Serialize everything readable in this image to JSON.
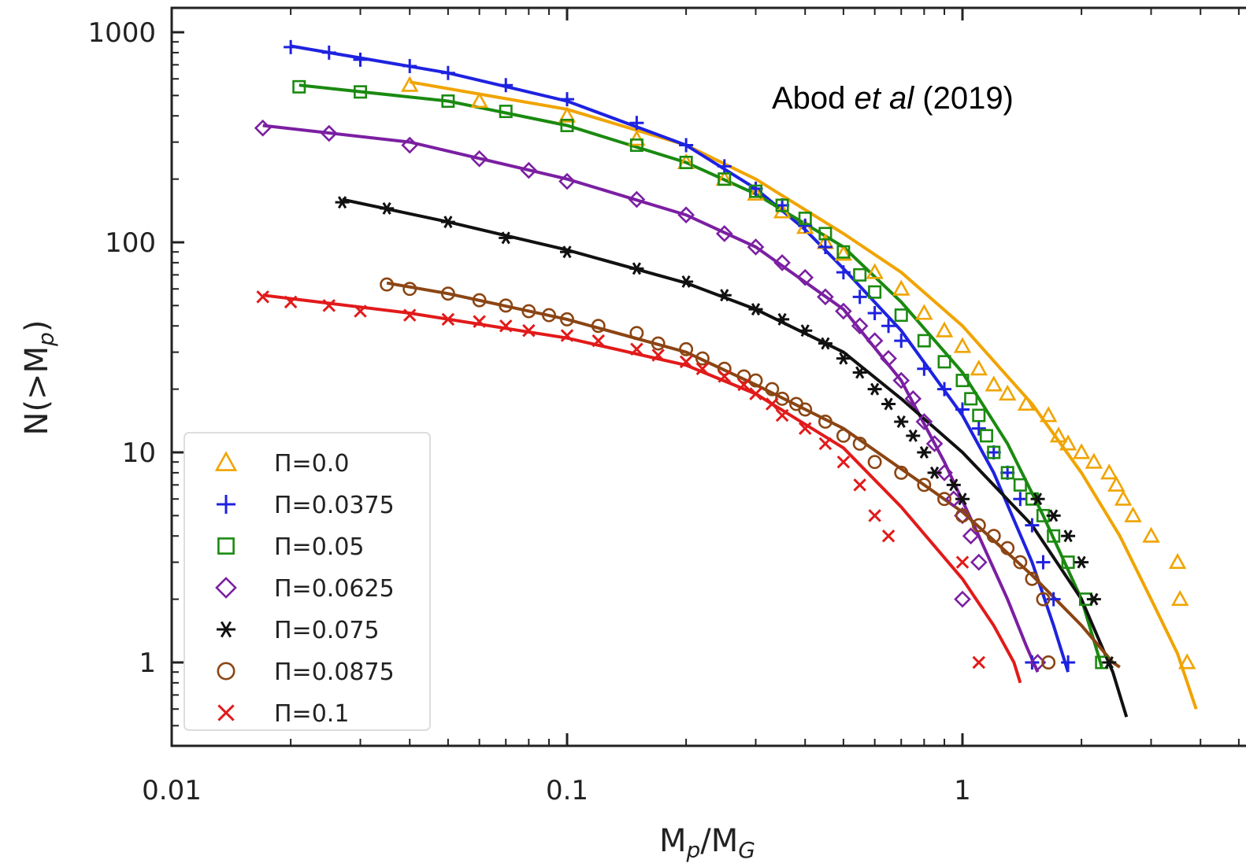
{
  "chart_data": {
    "type": "scatter",
    "title": "",
    "xlabel": "M",
    "xlabel_sub": "p",
    "xlabel_sep": "/M",
    "xlabel_sub2": "G",
    "ylabel": "N(>M",
    "ylabel_sub": "p",
    "ylabel_close": ")",
    "x_scale": "log",
    "y_scale": "log",
    "xlim": [
      0.01,
      5
    ],
    "ylim": [
      0.4,
      1200
    ],
    "x_ticks": [
      {
        "value": 0.01,
        "label": "0.01"
      },
      {
        "value": 0.1,
        "label": "0.1"
      },
      {
        "value": 1,
        "label": "1"
      }
    ],
    "y_ticks": [
      {
        "value": 1,
        "label": "1"
      },
      {
        "value": 10,
        "label": "10"
      },
      {
        "value": 100,
        "label": "100"
      },
      {
        "value": 1000,
        "label": "1000"
      }
    ],
    "grid": false,
    "legend_position": "bottom-left",
    "annotation": {
      "prefix": "Abod ",
      "italic": "et al",
      "suffix": " (2019)"
    },
    "series": [
      {
        "name": "Π=0.0",
        "color": "#f0a400",
        "marker": "triangle",
        "points": [
          [
            0.04,
            560
          ],
          [
            0.06,
            470
          ],
          [
            0.1,
            400
          ],
          [
            0.15,
            310
          ],
          [
            0.2,
            240
          ],
          [
            0.25,
            200
          ],
          [
            0.3,
            170
          ],
          [
            0.35,
            140
          ],
          [
            0.4,
            118
          ],
          [
            0.45,
            100
          ],
          [
            0.5,
            88
          ],
          [
            0.6,
            72
          ],
          [
            0.7,
            60
          ],
          [
            0.8,
            46
          ],
          [
            0.9,
            38
          ],
          [
            1.0,
            32
          ],
          [
            1.1,
            25
          ],
          [
            1.2,
            21
          ],
          [
            1.3,
            19
          ],
          [
            1.45,
            17
          ],
          [
            1.65,
            15
          ],
          [
            1.75,
            12
          ],
          [
            1.85,
            11
          ],
          [
            2.0,
            10
          ],
          [
            2.15,
            9
          ],
          [
            2.35,
            8
          ],
          [
            2.45,
            7
          ],
          [
            2.55,
            6
          ],
          [
            2.7,
            5
          ],
          [
            3.0,
            4
          ],
          [
            3.5,
            3
          ],
          [
            3.55,
            2
          ],
          [
            3.7,
            1
          ]
        ],
        "fit": [
          [
            0.04,
            580
          ],
          [
            0.1,
            430
          ],
          [
            0.2,
            290
          ],
          [
            0.3,
            200
          ],
          [
            0.5,
            110
          ],
          [
            0.7,
            72
          ],
          [
            1.0,
            40
          ],
          [
            1.5,
            17
          ],
          [
            2.0,
            8
          ],
          [
            2.5,
            4
          ],
          [
            3.0,
            2
          ],
          [
            3.5,
            1.1
          ],
          [
            3.9,
            0.6
          ]
        ]
      },
      {
        "name": "Π=0.0375",
        "color": "#1e22e0",
        "marker": "plus",
        "points": [
          [
            0.02,
            850
          ],
          [
            0.025,
            800
          ],
          [
            0.03,
            740
          ],
          [
            0.04,
            690
          ],
          [
            0.05,
            640
          ],
          [
            0.07,
            560
          ],
          [
            0.1,
            480
          ],
          [
            0.15,
            370
          ],
          [
            0.2,
            290
          ],
          [
            0.25,
            230
          ],
          [
            0.3,
            180
          ],
          [
            0.35,
            150
          ],
          [
            0.4,
            120
          ],
          [
            0.45,
            95
          ],
          [
            0.5,
            72
          ],
          [
            0.55,
            55
          ],
          [
            0.6,
            46
          ],
          [
            0.65,
            40
          ],
          [
            0.7,
            34
          ],
          [
            0.8,
            25
          ],
          [
            0.9,
            20
          ],
          [
            1.0,
            16
          ],
          [
            1.1,
            13
          ],
          [
            1.2,
            10
          ],
          [
            1.3,
            8
          ],
          [
            1.4,
            6
          ],
          [
            1.5,
            4.5
          ],
          [
            1.6,
            3
          ],
          [
            1.7,
            2
          ],
          [
            1.85,
            1
          ],
          [
            1.5,
            1
          ]
        ],
        "fit": [
          [
            0.02,
            860
          ],
          [
            0.05,
            640
          ],
          [
            0.1,
            470
          ],
          [
            0.2,
            290
          ],
          [
            0.3,
            180
          ],
          [
            0.4,
            115
          ],
          [
            0.5,
            75
          ],
          [
            0.7,
            38
          ],
          [
            1.0,
            15
          ],
          [
            1.2,
            8
          ],
          [
            1.5,
            3
          ],
          [
            1.7,
            1.5
          ],
          [
            1.85,
            0.9
          ]
        ]
      },
      {
        "name": "Π=0.05",
        "color": "#1a8a10",
        "marker": "square",
        "points": [
          [
            0.021,
            550
          ],
          [
            0.03,
            520
          ],
          [
            0.05,
            470
          ],
          [
            0.07,
            420
          ],
          [
            0.1,
            360
          ],
          [
            0.15,
            290
          ],
          [
            0.2,
            240
          ],
          [
            0.25,
            200
          ],
          [
            0.3,
            175
          ],
          [
            0.35,
            150
          ],
          [
            0.4,
            130
          ],
          [
            0.45,
            110
          ],
          [
            0.5,
            90
          ],
          [
            0.55,
            70
          ],
          [
            0.6,
            58
          ],
          [
            0.7,
            45
          ],
          [
            0.8,
            34
          ],
          [
            0.9,
            27
          ],
          [
            1.0,
            22
          ],
          [
            1.05,
            18
          ],
          [
            1.1,
            15
          ],
          [
            1.15,
            12
          ],
          [
            1.2,
            10
          ],
          [
            1.3,
            8
          ],
          [
            1.4,
            7
          ],
          [
            1.5,
            6
          ],
          [
            1.6,
            5
          ],
          [
            1.7,
            4
          ],
          [
            1.85,
            3
          ],
          [
            2.05,
            2
          ],
          [
            2.25,
            1
          ]
        ],
        "fit": [
          [
            0.021,
            560
          ],
          [
            0.05,
            470
          ],
          [
            0.1,
            360
          ],
          [
            0.2,
            240
          ],
          [
            0.3,
            170
          ],
          [
            0.5,
            95
          ],
          [
            0.7,
            52
          ],
          [
            1.0,
            24
          ],
          [
            1.3,
            11
          ],
          [
            1.6,
            5
          ],
          [
            2.0,
            2
          ],
          [
            2.2,
            1.1
          ],
          [
            2.25,
            0.95
          ]
        ]
      },
      {
        "name": "Π=0.0625",
        "color": "#7b1fa2",
        "marker": "diamond",
        "points": [
          [
            0.017,
            350
          ],
          [
            0.025,
            330
          ],
          [
            0.04,
            290
          ],
          [
            0.06,
            250
          ],
          [
            0.08,
            220
          ],
          [
            0.1,
            195
          ],
          [
            0.15,
            160
          ],
          [
            0.2,
            135
          ],
          [
            0.25,
            110
          ],
          [
            0.3,
            95
          ],
          [
            0.35,
            80
          ],
          [
            0.4,
            68
          ],
          [
            0.45,
            55
          ],
          [
            0.5,
            47
          ],
          [
            0.55,
            40
          ],
          [
            0.6,
            34
          ],
          [
            0.65,
            28
          ],
          [
            0.7,
            22
          ],
          [
            0.75,
            18
          ],
          [
            0.8,
            14
          ],
          [
            0.85,
            11
          ],
          [
            0.9,
            8
          ],
          [
            0.95,
            6
          ],
          [
            1.0,
            5
          ],
          [
            1.05,
            4
          ],
          [
            1.1,
            3
          ],
          [
            1.0,
            2
          ],
          [
            1.55,
            1
          ]
        ],
        "fit": [
          [
            0.017,
            360
          ],
          [
            0.04,
            300
          ],
          [
            0.1,
            200
          ],
          [
            0.2,
            135
          ],
          [
            0.3,
            95
          ],
          [
            0.5,
            48
          ],
          [
            0.7,
            22
          ],
          [
            0.9,
            9
          ],
          [
            1.1,
            4
          ],
          [
            1.3,
            2
          ],
          [
            1.45,
            1.2
          ],
          [
            1.55,
            0.9
          ]
        ]
      },
      {
        "name": "Π=0.075",
        "color": "#111111",
        "marker": "star",
        "points": [
          [
            0.027,
            155
          ],
          [
            0.035,
            145
          ],
          [
            0.05,
            125
          ],
          [
            0.07,
            105
          ],
          [
            0.1,
            90
          ],
          [
            0.15,
            75
          ],
          [
            0.2,
            65
          ],
          [
            0.25,
            56
          ],
          [
            0.3,
            48
          ],
          [
            0.35,
            43
          ],
          [
            0.4,
            38
          ],
          [
            0.45,
            33
          ],
          [
            0.5,
            28
          ],
          [
            0.55,
            24
          ],
          [
            0.6,
            20
          ],
          [
            0.65,
            17
          ],
          [
            0.7,
            14
          ],
          [
            0.75,
            12
          ],
          [
            0.8,
            10
          ],
          [
            0.85,
            8
          ],
          [
            0.95,
            7
          ],
          [
            1.0,
            6
          ],
          [
            1.55,
            6
          ],
          [
            1.7,
            5
          ],
          [
            1.85,
            4
          ],
          [
            2.0,
            3
          ],
          [
            2.15,
            2
          ],
          [
            2.35,
            1
          ]
        ],
        "fit": [
          [
            0.027,
            160
          ],
          [
            0.05,
            125
          ],
          [
            0.1,
            92
          ],
          [
            0.2,
            64
          ],
          [
            0.3,
            48
          ],
          [
            0.5,
            30
          ],
          [
            0.7,
            18
          ],
          [
            1.0,
            10
          ],
          [
            1.5,
            4.5
          ],
          [
            2.0,
            2
          ],
          [
            2.4,
            0.9
          ],
          [
            2.6,
            0.55
          ]
        ]
      },
      {
        "name": "Π=0.0875",
        "color": "#8b4513",
        "marker": "circle",
        "points": [
          [
            0.035,
            63
          ],
          [
            0.04,
            60
          ],
          [
            0.05,
            57
          ],
          [
            0.06,
            53
          ],
          [
            0.07,
            50
          ],
          [
            0.08,
            47
          ],
          [
            0.09,
            45
          ],
          [
            0.1,
            43
          ],
          [
            0.12,
            40
          ],
          [
            0.15,
            37
          ],
          [
            0.17,
            33
          ],
          [
            0.2,
            31
          ],
          [
            0.22,
            28
          ],
          [
            0.25,
            25
          ],
          [
            0.28,
            23
          ],
          [
            0.3,
            22
          ],
          [
            0.33,
            20
          ],
          [
            0.35,
            18
          ],
          [
            0.38,
            17
          ],
          [
            0.4,
            16
          ],
          [
            0.45,
            14
          ],
          [
            0.5,
            12
          ],
          [
            0.55,
            11
          ],
          [
            0.6,
            9
          ],
          [
            0.7,
            8
          ],
          [
            0.8,
            7
          ],
          [
            0.9,
            6
          ],
          [
            1.0,
            5
          ],
          [
            1.1,
            4.5
          ],
          [
            1.2,
            4
          ],
          [
            1.3,
            3.5
          ],
          [
            1.4,
            3
          ],
          [
            1.5,
            2.5
          ],
          [
            1.6,
            2
          ],
          [
            1.65,
            1
          ]
        ],
        "fit": [
          [
            0.035,
            64
          ],
          [
            0.05,
            57
          ],
          [
            0.1,
            43
          ],
          [
            0.2,
            30
          ],
          [
            0.3,
            21
          ],
          [
            0.5,
            13
          ],
          [
            0.8,
            7
          ],
          [
            1.0,
            5.2
          ],
          [
            1.5,
            2.6
          ],
          [
            2.0,
            1.5
          ],
          [
            2.4,
            1.0
          ],
          [
            2.5,
            0.95
          ]
        ]
      },
      {
        "name": "Π=0.1",
        "color": "#e21a1a",
        "marker": "cross",
        "points": [
          [
            0.017,
            55
          ],
          [
            0.02,
            52
          ],
          [
            0.025,
            50
          ],
          [
            0.03,
            47
          ],
          [
            0.04,
            45
          ],
          [
            0.05,
            43
          ],
          [
            0.06,
            42
          ],
          [
            0.07,
            40
          ],
          [
            0.08,
            38
          ],
          [
            0.1,
            36
          ],
          [
            0.12,
            34
          ],
          [
            0.15,
            31
          ],
          [
            0.17,
            29
          ],
          [
            0.2,
            27
          ],
          [
            0.22,
            25
          ],
          [
            0.25,
            23
          ],
          [
            0.28,
            21
          ],
          [
            0.3,
            19
          ],
          [
            0.33,
            17
          ],
          [
            0.35,
            15
          ],
          [
            0.4,
            13
          ],
          [
            0.45,
            11
          ],
          [
            0.5,
            9
          ],
          [
            0.55,
            7
          ],
          [
            0.6,
            5
          ],
          [
            0.65,
            4
          ],
          [
            1.0,
            3
          ],
          [
            1.1,
            1
          ]
        ],
        "fit": [
          [
            0.017,
            56
          ],
          [
            0.04,
            46
          ],
          [
            0.1,
            35
          ],
          [
            0.2,
            26
          ],
          [
            0.3,
            19
          ],
          [
            0.5,
            10.5
          ],
          [
            0.7,
            5.5
          ],
          [
            1.0,
            2.5
          ],
          [
            1.2,
            1.5
          ],
          [
            1.35,
            1.0
          ],
          [
            1.4,
            0.8
          ]
        ]
      }
    ]
  }
}
